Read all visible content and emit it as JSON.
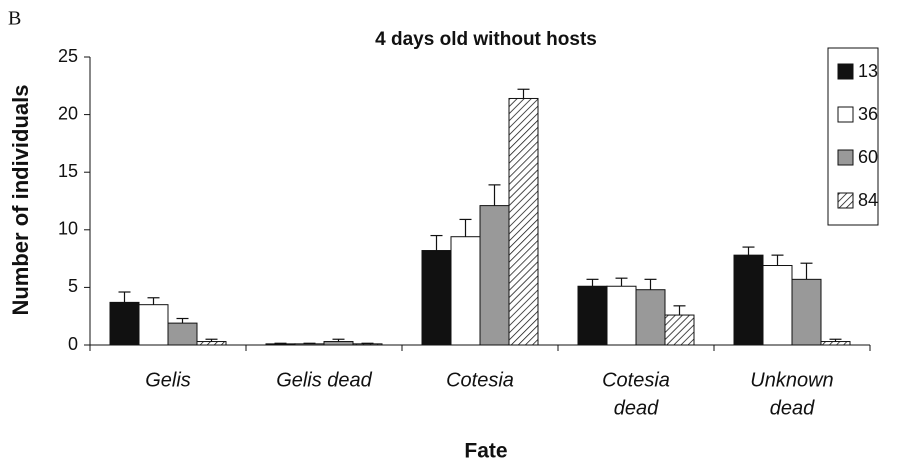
{
  "panel": "B",
  "chart_data": {
    "type": "bar",
    "title": "4 days old without hosts",
    "xlabel": "Fate",
    "ylabel": "Number of individuals",
    "categories": [
      [
        "Gelis"
      ],
      [
        "Gelis dead"
      ],
      [
        "Cotesia"
      ],
      [
        "Cotesia",
        "dead"
      ],
      [
        "Unknown",
        "dead"
      ]
    ],
    "series": [
      {
        "name": "13",
        "color": "#111111",
        "values": [
          3.7,
          0.1,
          8.2,
          5.1,
          7.8
        ],
        "errors": [
          0.9,
          0.05,
          1.3,
          0.6,
          0.7
        ]
      },
      {
        "name": "36",
        "color": "#ffffff",
        "values": [
          3.5,
          0.1,
          9.4,
          5.1,
          6.9
        ],
        "errors": [
          0.6,
          0.05,
          1.5,
          0.7,
          0.9
        ]
      },
      {
        "name": "60",
        "color": "#999999",
        "values": [
          1.9,
          0.3,
          12.1,
          4.8,
          5.7
        ],
        "errors": [
          0.4,
          0.2,
          1.8,
          0.9,
          1.4
        ]
      },
      {
        "name": "84",
        "color": "#ffffff",
        "hatch": true,
        "values": [
          0.3,
          0.1,
          21.4,
          2.6,
          0.3
        ],
        "errors": [
          0.2,
          0.05,
          0.8,
          0.8,
          0.2
        ]
      }
    ],
    "ylim": [
      0,
      25
    ],
    "yticks": [
      0,
      5,
      10,
      15,
      20,
      25
    ],
    "legend": "upper right"
  }
}
